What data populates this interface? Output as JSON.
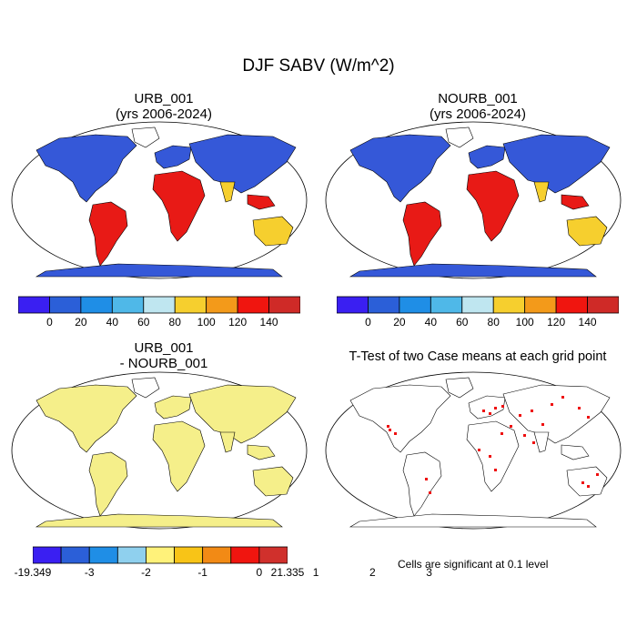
{
  "figure": {
    "title": "DJF SABV (W/m^2)"
  },
  "panels": {
    "urb": {
      "title_line1": "URB_001",
      "title_line2": "(yrs 2006-2024)"
    },
    "nourb": {
      "title_line1": "NOURB_001",
      "title_line2": "(yrs 2006-2024)"
    },
    "diff": {
      "title_line1": "URB_001",
      "title_line2": "- NOURB_001"
    },
    "ttest": {
      "title_line1": "T-Test of two Case means at each grid point"
    }
  },
  "colorbar_top": {
    "colors": [
      "#3a1ff2",
      "#2b5fd8",
      "#1f8ee6",
      "#4fb8e8",
      "#bfe6f0",
      "#f6cf2e",
      "#f39a1a",
      "#f0150f",
      "#cf2a27"
    ],
    "labels": [
      "0",
      "20",
      "40",
      "60",
      "80",
      "100",
      "120",
      "140"
    ]
  },
  "colorbar_diff": {
    "colors": [
      "#3a1ff2",
      "#2b5fd8",
      "#1f8ee6",
      "#8fd0ee",
      "#fff27a",
      "#f8c417",
      "#f28a15",
      "#f0150f",
      "#d0302c"
    ],
    "labels": [
      "-19.349",
      "-3",
      "-2",
      "-1",
      "0",
      "1",
      "2",
      "3",
      "21.335"
    ]
  },
  "significance_note": "Cells are significant at 0.1 level",
  "colors": {
    "land_cold": "#3558d8",
    "land_mid": "#f6cf2e",
    "land_hot": "#e81a16",
    "diff_base": "#f5ef8a",
    "sig_red": "#ee0f0f"
  }
}
